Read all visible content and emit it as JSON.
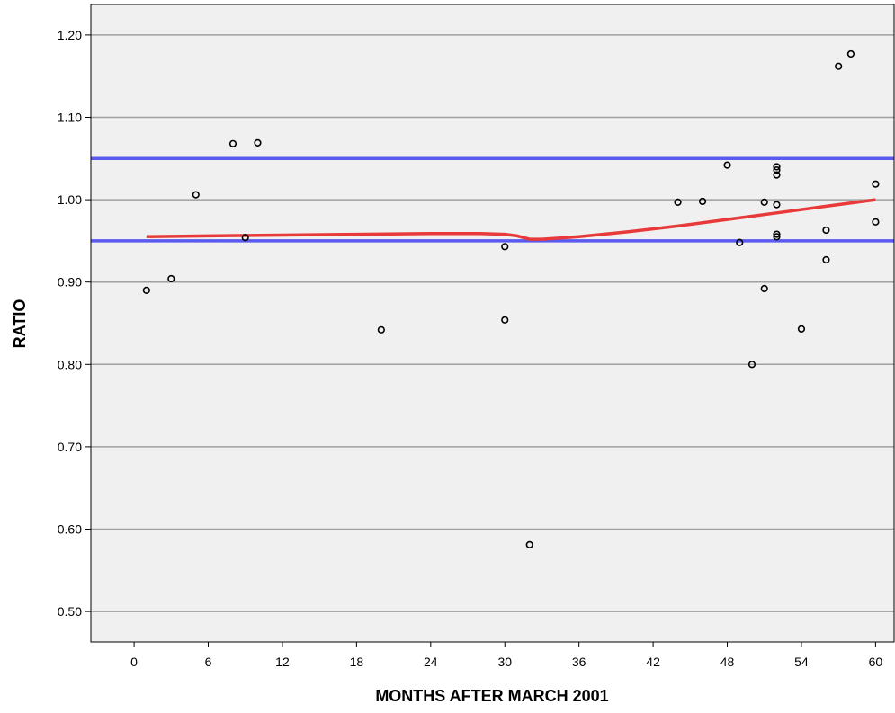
{
  "chart_data": {
    "type": "scatter",
    "title": "",
    "xlabel": "MONTHS AFTER MARCH 2001",
    "ylabel": "RATIO",
    "xlim": [
      -3.5,
      61.5
    ],
    "ylim": [
      0.463,
      1.237
    ],
    "xticks": [
      0,
      6,
      12,
      18,
      24,
      30,
      36,
      42,
      48,
      54,
      60
    ],
    "yticks": [
      0.5,
      0.6,
      0.7,
      0.8,
      0.9,
      1.0,
      1.1,
      1.2
    ],
    "ytick_labels": [
      "0.50",
      "0.60",
      "0.70",
      "0.80",
      "0.90",
      "1.00",
      "1.10",
      "1.20"
    ],
    "grid": "horizontal",
    "background_color": "#f0f0f0",
    "grid_color": "#a0a0a0",
    "reference_lines": [
      {
        "axis": "y",
        "value": 1.05,
        "color": "#5a5af0"
      },
      {
        "axis": "y",
        "value": 0.95,
        "color": "#5a5af0"
      }
    ],
    "series": [
      {
        "type": "scatter",
        "marker": "open-circle",
        "color": "#000000",
        "points": [
          [
            1,
            0.89
          ],
          [
            3,
            0.904
          ],
          [
            5,
            1.006
          ],
          [
            8,
            1.068
          ],
          [
            9,
            0.954
          ],
          [
            10,
            1.069
          ],
          [
            20,
            0.842
          ],
          [
            30,
            0.943
          ],
          [
            30,
            0.854
          ],
          [
            32,
            0.581
          ],
          [
            44,
            0.997
          ],
          [
            46,
            0.998
          ],
          [
            48,
            1.042
          ],
          [
            49,
            0.948
          ],
          [
            50,
            0.8
          ],
          [
            51,
            0.997
          ],
          [
            51,
            0.892
          ],
          [
            52,
            1.04
          ],
          [
            52,
            1.036
          ],
          [
            52,
            1.03
          ],
          [
            52,
            0.994
          ],
          [
            52,
            0.958
          ],
          [
            52,
            0.955
          ],
          [
            54,
            0.843
          ],
          [
            56,
            0.963
          ],
          [
            56,
            0.927
          ],
          [
            57,
            1.162
          ],
          [
            58,
            1.177
          ],
          [
            60,
            1.019
          ],
          [
            60,
            0.973
          ]
        ]
      },
      {
        "type": "line",
        "color": "#e83a3a",
        "points": [
          [
            1,
            0.955
          ],
          [
            6,
            0.956
          ],
          [
            12,
            0.957
          ],
          [
            18,
            0.958
          ],
          [
            24,
            0.959
          ],
          [
            28,
            0.959
          ],
          [
            30,
            0.958
          ],
          [
            31,
            0.956
          ],
          [
            32,
            0.952
          ],
          [
            33,
            0.952
          ],
          [
            36,
            0.955
          ],
          [
            40,
            0.961
          ],
          [
            44,
            0.968
          ],
          [
            48,
            0.976
          ],
          [
            52,
            0.984
          ],
          [
            56,
            0.992
          ],
          [
            60,
            1.0
          ]
        ]
      }
    ]
  }
}
